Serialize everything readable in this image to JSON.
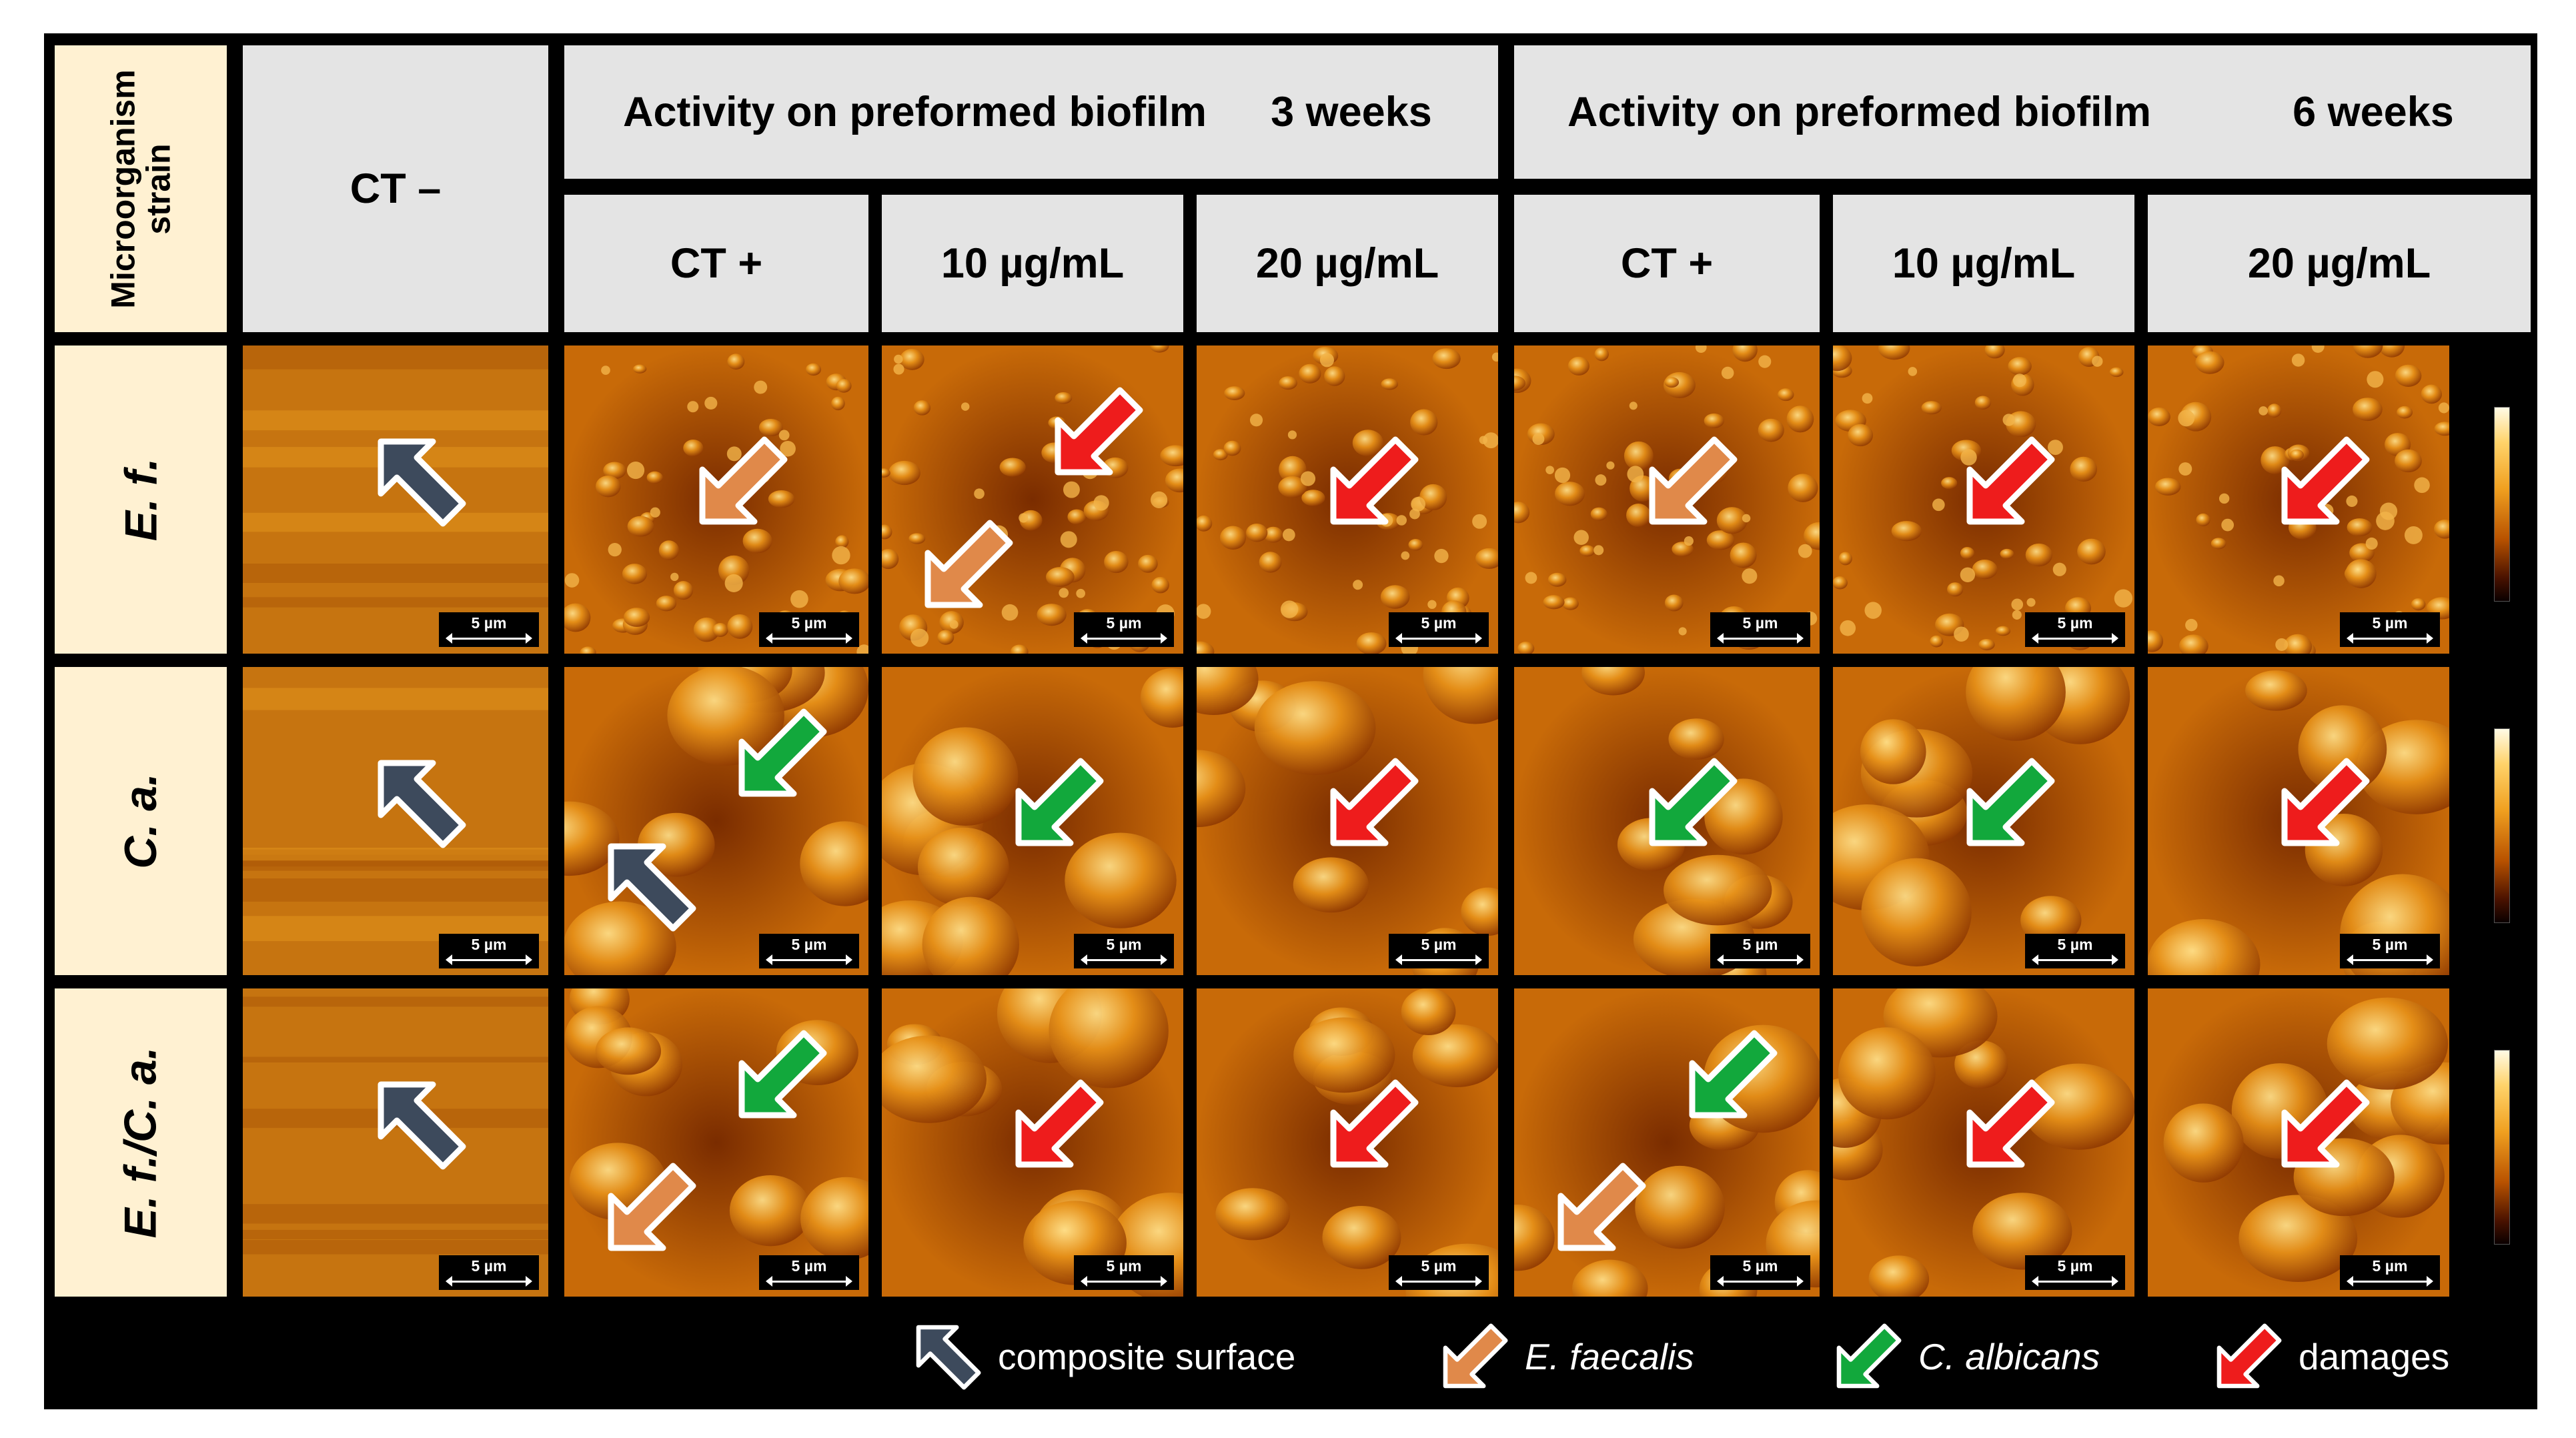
{
  "header": {
    "strain_label": "Microorganism strain",
    "ct_minus": "CT –",
    "group1_title": "Activity on preformed biofilm",
    "group1_time": "3 weeks",
    "group2_title": "Activity on preformed biofilm",
    "group2_time": "6 weeks",
    "sub_columns": [
      "CT +",
      "10 µg/mL",
      "20 µg/mL",
      "CT +",
      "10 µg/mL",
      "20 µg/mL"
    ]
  },
  "rows": [
    {
      "label": "E. f.",
      "colorbar": {
        "top": "2",
        "bottom": "0",
        "unit": "µm"
      }
    },
    {
      "label": "C. a.",
      "colorbar": {
        "top": "3",
        "bottom": "0",
        "unit": "µm"
      }
    },
    {
      "label": "E. f./C. a.",
      "colorbar": {
        "top": "3",
        "bottom": "0",
        "unit": "µm"
      }
    }
  ],
  "scale_bar": "5 µm",
  "legend": [
    {
      "label": "composite surface",
      "color": "#3d4a5c",
      "italic": false
    },
    {
      "label": "E. faecalis",
      "color": "#e0894a",
      "italic": true
    },
    {
      "label": "C. albicans",
      "color": "#12a83c",
      "italic": true
    },
    {
      "label": "damages",
      "color": "#ee1c1c",
      "italic": false
    }
  ],
  "arrows": [
    [
      [
        "slate"
      ],
      [
        "orange"
      ],
      [
        "red",
        "orange"
      ],
      [
        "red"
      ],
      [
        "orange"
      ],
      [
        "red"
      ],
      [
        "red"
      ]
    ],
    [
      [
        "slate"
      ],
      [
        "green",
        "slate"
      ],
      [
        "green"
      ],
      [
        "red"
      ],
      [
        "green"
      ],
      [
        "green"
      ],
      [
        "red"
      ]
    ],
    [
      [
        "slate"
      ],
      [
        "green",
        "orange"
      ],
      [
        "red"
      ],
      [
        "red"
      ],
      [
        "green",
        "orange"
      ],
      [
        "red"
      ],
      [
        "red"
      ]
    ]
  ]
}
